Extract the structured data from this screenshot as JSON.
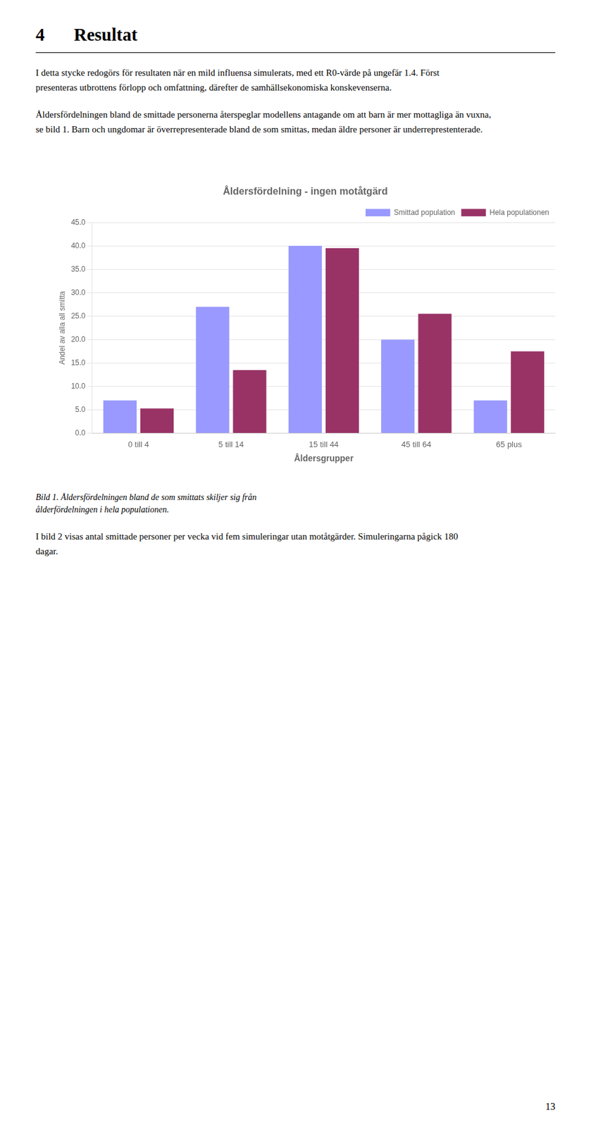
{
  "heading_num": "4",
  "heading_text": "Resultat",
  "para1": "I detta stycke redogörs för resultaten när en mild influensa simulerats, med ett R0-värde på ungefär 1.4. Först\npresenteras utbrottens förlopp och omfattning, därefter de samhällsekonomiska konskevenserna.",
  "para2": "Åldersfördelningen bland de smittade personerna återspeglar modellens antagande om att barn är mer mottagliga än vuxna,\nse bild 1. Barn och ungdomar är överrepresenterade bland de som smittas, medan äldre personer är underreprestenterade.",
  "caption": "Bild 1. Åldersfördelningen bland de som smittats skiljer sig från\nålderfördelningen i hela populationen.",
  "para3": "I bild 2 visas antal smittade personer per vecka vid fem simuleringar utan motåtgärder. Simuleringarna pågick 180\ndagar.",
  "page_number": "13",
  "chart_data": {
    "type": "bar",
    "title": "Åldersfördelning - ingen motåtgärd",
    "xlabel": "Åldersgrupper",
    "ylabel": "Andel av alla all smitta",
    "categories": [
      "0 till 4",
      "5 till 14",
      "15 till 44",
      "45 till 64",
      "65 plus"
    ],
    "series": [
      {
        "name": "Smittad population",
        "color": "#9999FF",
        "values": [
          7.0,
          27.0,
          40.0,
          20.0,
          7.0
        ]
      },
      {
        "name": "Hela populationen",
        "color": "#993366",
        "values": [
          5.3,
          13.5,
          39.5,
          25.5,
          17.5
        ]
      }
    ],
    "ylim": [
      0,
      45
    ],
    "yticks": [
      {
        "value": 0,
        "label": "0.0"
      },
      {
        "value": 5,
        "label": "5.0"
      },
      {
        "value": 10,
        "label": "10.0"
      },
      {
        "value": 15,
        "label": "15.0"
      },
      {
        "value": 20,
        "label": "20.0"
      },
      {
        "value": 25,
        "label": "25.0"
      },
      {
        "value": 30,
        "label": "30.0"
      },
      {
        "value": 35,
        "label": "35.0"
      },
      {
        "value": 40,
        "label": "40.0"
      },
      {
        "value": 45,
        "label": "45.0"
      }
    ],
    "grid": true,
    "legend": "upper right"
  }
}
